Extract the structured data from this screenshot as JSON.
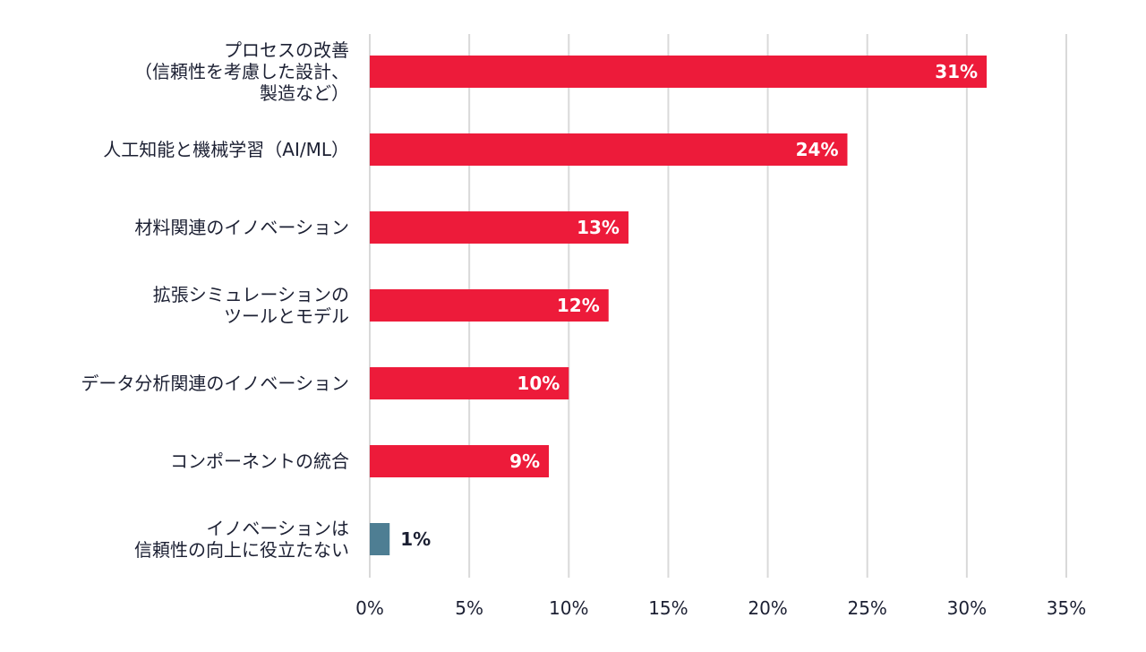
{
  "chart_data": {
    "type": "bar",
    "orientation": "horizontal",
    "categories": [
      [
        "プロセスの改善",
        "（信頼性を考慮した設計、",
        "製造など）"
      ],
      [
        "人工知能と機械学習（AI/ML）"
      ],
      [
        "材料関連のイノベーション"
      ],
      [
        "拡張シミュレーションの",
        "ツールとモデル"
      ],
      [
        "データ分析関連のイノベーション"
      ],
      [
        "コンポーネントの統合"
      ],
      [
        "イノベーションは",
        "信頼性の向上に役立たない"
      ]
    ],
    "values": [
      31,
      24,
      13,
      12,
      10,
      9,
      1
    ],
    "value_labels": [
      "31%",
      "24%",
      "13%",
      "12%",
      "10%",
      "9%",
      "1%"
    ],
    "bar_colors": [
      "#ed1b3a",
      "#ed1b3a",
      "#ed1b3a",
      "#ed1b3a",
      "#ed1b3a",
      "#ed1b3a",
      "#4e7e93"
    ],
    "label_colors": [
      "#ffffff",
      "#ffffff",
      "#ffffff",
      "#ffffff",
      "#ffffff",
      "#ffffff",
      "#1c2033"
    ],
    "label_inside": [
      true,
      true,
      true,
      true,
      true,
      true,
      false
    ],
    "xlim": [
      0,
      35
    ],
    "xticks": [
      0,
      5,
      10,
      15,
      20,
      25,
      30,
      35
    ],
    "xtick_labels": [
      "0%",
      "5%",
      "10%",
      "15%",
      "20%",
      "25%",
      "30%",
      "35%"
    ],
    "grid": true,
    "legend": "none",
    "title": "",
    "xlabel": "",
    "ylabel": ""
  }
}
